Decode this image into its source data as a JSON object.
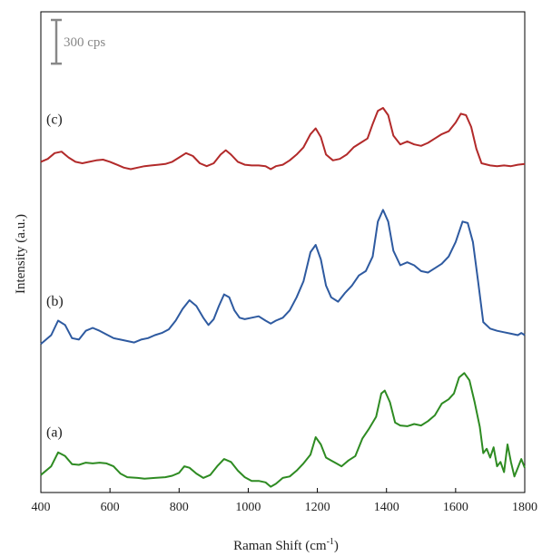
{
  "chart_data": {
    "type": "line",
    "title": "",
    "xlabel": "Raman Shift",
    "xlabel_unit_base": "(cm",
    "xlabel_unit_sup": "-1",
    "xlabel_unit_close": ")",
    "ylabel": "Intensity (a.u.)",
    "xlim": [
      400,
      1800
    ],
    "ylim": [
      0,
      3300
    ],
    "x_ticks": [
      400,
      600,
      800,
      1000,
      1200,
      1400,
      1600,
      1800
    ],
    "y_ticks_shown": false,
    "grid": false,
    "legend": "none",
    "scale_bar": {
      "label": "300 cps",
      "value": 300,
      "color": "#888888"
    },
    "series": [
      {
        "label": "(a)",
        "color": "#2e8b22",
        "points": [
          [
            400,
            120
          ],
          [
            430,
            180
          ],
          [
            450,
            275
          ],
          [
            470,
            250
          ],
          [
            490,
            195
          ],
          [
            510,
            190
          ],
          [
            530,
            205
          ],
          [
            550,
            200
          ],
          [
            570,
            205
          ],
          [
            590,
            200
          ],
          [
            610,
            180
          ],
          [
            630,
            130
          ],
          [
            650,
            105
          ],
          [
            680,
            100
          ],
          [
            700,
            95
          ],
          [
            730,
            100
          ],
          [
            760,
            105
          ],
          [
            780,
            115
          ],
          [
            800,
            135
          ],
          [
            815,
            180
          ],
          [
            830,
            170
          ],
          [
            850,
            130
          ],
          [
            870,
            100
          ],
          [
            890,
            120
          ],
          [
            910,
            180
          ],
          [
            930,
            230
          ],
          [
            950,
            210
          ],
          [
            970,
            150
          ],
          [
            990,
            105
          ],
          [
            1010,
            80
          ],
          [
            1030,
            80
          ],
          [
            1050,
            70
          ],
          [
            1065,
            40
          ],
          [
            1080,
            60
          ],
          [
            1100,
            100
          ],
          [
            1120,
            110
          ],
          [
            1140,
            150
          ],
          [
            1160,
            200
          ],
          [
            1180,
            260
          ],
          [
            1195,
            380
          ],
          [
            1210,
            330
          ],
          [
            1225,
            240
          ],
          [
            1240,
            220
          ],
          [
            1255,
            200
          ],
          [
            1270,
            180
          ],
          [
            1290,
            220
          ],
          [
            1310,
            250
          ],
          [
            1330,
            370
          ],
          [
            1350,
            440
          ],
          [
            1370,
            520
          ],
          [
            1385,
            680
          ],
          [
            1395,
            700
          ],
          [
            1410,
            620
          ],
          [
            1425,
            480
          ],
          [
            1440,
            460
          ],
          [
            1460,
            455
          ],
          [
            1480,
            470
          ],
          [
            1500,
            460
          ],
          [
            1520,
            490
          ],
          [
            1540,
            530
          ],
          [
            1560,
            610
          ],
          [
            1580,
            640
          ],
          [
            1595,
            680
          ],
          [
            1610,
            790
          ],
          [
            1625,
            820
          ],
          [
            1640,
            770
          ],
          [
            1655,
            620
          ],
          [
            1670,
            450
          ],
          [
            1680,
            270
          ],
          [
            1690,
            300
          ],
          [
            1700,
            240
          ],
          [
            1710,
            310
          ],
          [
            1720,
            180
          ],
          [
            1730,
            210
          ],
          [
            1740,
            140
          ],
          [
            1750,
            330
          ],
          [
            1760,
            210
          ],
          [
            1770,
            110
          ],
          [
            1780,
            170
          ],
          [
            1790,
            230
          ],
          [
            1800,
            170
          ]
        ]
      },
      {
        "label": "(b)",
        "color": "#2e5aa0",
        "points": [
          [
            400,
            1020
          ],
          [
            430,
            1080
          ],
          [
            450,
            1180
          ],
          [
            470,
            1150
          ],
          [
            490,
            1060
          ],
          [
            510,
            1050
          ],
          [
            530,
            1110
          ],
          [
            550,
            1130
          ],
          [
            570,
            1110
          ],
          [
            590,
            1085
          ],
          [
            610,
            1060
          ],
          [
            630,
            1050
          ],
          [
            650,
            1040
          ],
          [
            670,
            1030
          ],
          [
            690,
            1050
          ],
          [
            710,
            1060
          ],
          [
            730,
            1080
          ],
          [
            750,
            1095
          ],
          [
            770,
            1120
          ],
          [
            790,
            1180
          ],
          [
            810,
            1260
          ],
          [
            830,
            1320
          ],
          [
            850,
            1280
          ],
          [
            870,
            1200
          ],
          [
            885,
            1150
          ],
          [
            900,
            1190
          ],
          [
            915,
            1280
          ],
          [
            930,
            1360
          ],
          [
            945,
            1340
          ],
          [
            960,
            1250
          ],
          [
            975,
            1200
          ],
          [
            990,
            1190
          ],
          [
            1010,
            1200
          ],
          [
            1030,
            1210
          ],
          [
            1050,
            1180
          ],
          [
            1065,
            1160
          ],
          [
            1080,
            1180
          ],
          [
            1100,
            1200
          ],
          [
            1120,
            1250
          ],
          [
            1140,
            1340
          ],
          [
            1160,
            1450
          ],
          [
            1180,
            1650
          ],
          [
            1195,
            1700
          ],
          [
            1210,
            1600
          ],
          [
            1225,
            1420
          ],
          [
            1240,
            1340
          ],
          [
            1260,
            1310
          ],
          [
            1280,
            1370
          ],
          [
            1300,
            1420
          ],
          [
            1320,
            1490
          ],
          [
            1340,
            1520
          ],
          [
            1360,
            1620
          ],
          [
            1375,
            1860
          ],
          [
            1390,
            1940
          ],
          [
            1405,
            1860
          ],
          [
            1420,
            1660
          ],
          [
            1440,
            1560
          ],
          [
            1460,
            1580
          ],
          [
            1480,
            1560
          ],
          [
            1500,
            1520
          ],
          [
            1520,
            1510
          ],
          [
            1540,
            1540
          ],
          [
            1560,
            1570
          ],
          [
            1580,
            1620
          ],
          [
            1600,
            1720
          ],
          [
            1620,
            1860
          ],
          [
            1635,
            1850
          ],
          [
            1650,
            1720
          ],
          [
            1665,
            1450
          ],
          [
            1680,
            1170
          ],
          [
            1700,
            1125
          ],
          [
            1720,
            1110
          ],
          [
            1740,
            1100
          ],
          [
            1760,
            1090
          ],
          [
            1780,
            1080
          ],
          [
            1790,
            1095
          ],
          [
            1800,
            1080
          ]
        ]
      },
      {
        "label": "(c)",
        "color": "#b22a2a",
        "points": [
          [
            400,
            2270
          ],
          [
            420,
            2290
          ],
          [
            440,
            2330
          ],
          [
            460,
            2340
          ],
          [
            480,
            2300
          ],
          [
            500,
            2270
          ],
          [
            520,
            2260
          ],
          [
            540,
            2270
          ],
          [
            560,
            2280
          ],
          [
            580,
            2285
          ],
          [
            600,
            2270
          ],
          [
            620,
            2250
          ],
          [
            640,
            2230
          ],
          [
            660,
            2220
          ],
          [
            680,
            2230
          ],
          [
            700,
            2240
          ],
          [
            720,
            2245
          ],
          [
            740,
            2250
          ],
          [
            760,
            2255
          ],
          [
            780,
            2270
          ],
          [
            800,
            2300
          ],
          [
            820,
            2330
          ],
          [
            840,
            2310
          ],
          [
            860,
            2260
          ],
          [
            880,
            2240
          ],
          [
            900,
            2260
          ],
          [
            920,
            2320
          ],
          [
            935,
            2350
          ],
          [
            950,
            2320
          ],
          [
            970,
            2270
          ],
          [
            990,
            2250
          ],
          [
            1010,
            2245
          ],
          [
            1030,
            2245
          ],
          [
            1050,
            2240
          ],
          [
            1065,
            2220
          ],
          [
            1080,
            2240
          ],
          [
            1100,
            2250
          ],
          [
            1120,
            2280
          ],
          [
            1140,
            2320
          ],
          [
            1160,
            2370
          ],
          [
            1180,
            2460
          ],
          [
            1195,
            2500
          ],
          [
            1210,
            2440
          ],
          [
            1225,
            2320
          ],
          [
            1245,
            2280
          ],
          [
            1265,
            2290
          ],
          [
            1285,
            2320
          ],
          [
            1305,
            2370
          ],
          [
            1325,
            2400
          ],
          [
            1345,
            2430
          ],
          [
            1360,
            2530
          ],
          [
            1375,
            2620
          ],
          [
            1390,
            2640
          ],
          [
            1405,
            2590
          ],
          [
            1420,
            2450
          ],
          [
            1440,
            2390
          ],
          [
            1460,
            2410
          ],
          [
            1480,
            2390
          ],
          [
            1500,
            2380
          ],
          [
            1520,
            2400
          ],
          [
            1540,
            2430
          ],
          [
            1560,
            2460
          ],
          [
            1580,
            2480
          ],
          [
            1600,
            2540
          ],
          [
            1615,
            2600
          ],
          [
            1630,
            2590
          ],
          [
            1645,
            2510
          ],
          [
            1660,
            2360
          ],
          [
            1675,
            2260
          ],
          [
            1700,
            2245
          ],
          [
            1720,
            2240
          ],
          [
            1740,
            2245
          ],
          [
            1760,
            2240
          ],
          [
            1780,
            2250
          ],
          [
            1800,
            2255
          ]
        ]
      }
    ]
  }
}
